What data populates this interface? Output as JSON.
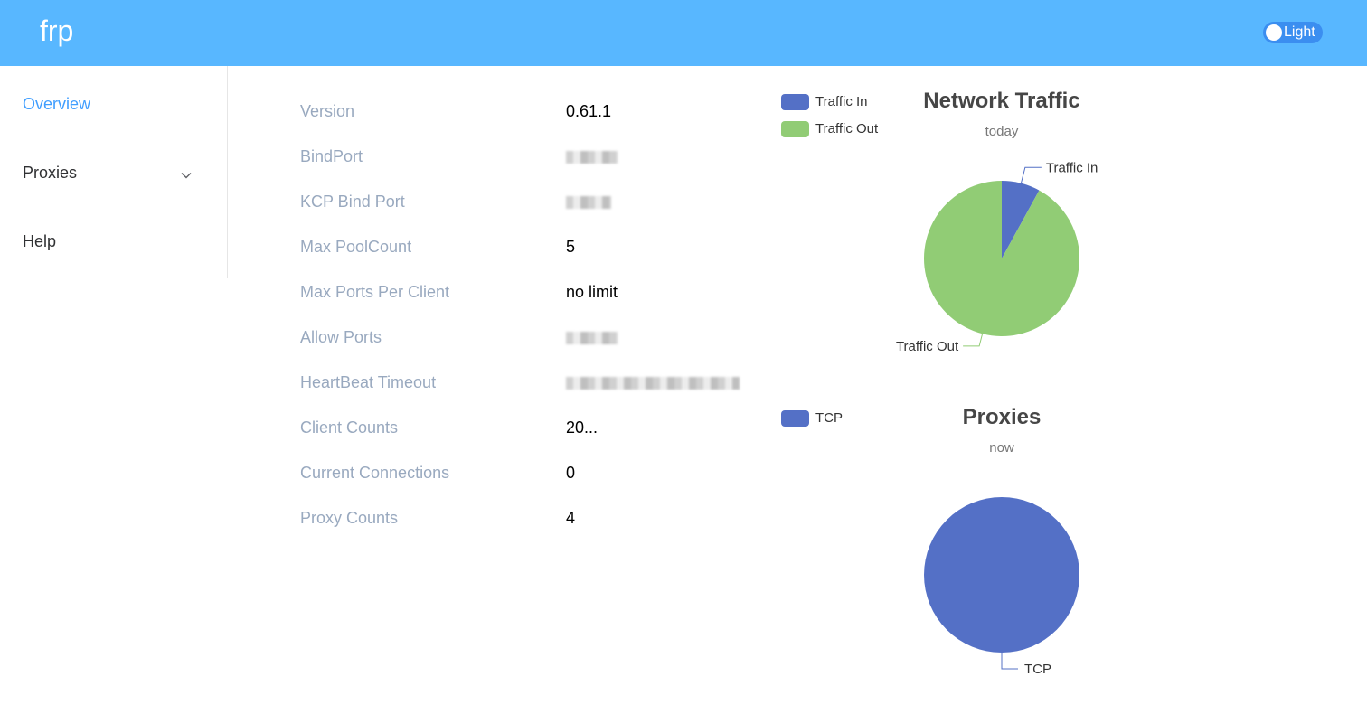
{
  "header": {
    "brand": "frp",
    "theme_toggle": {
      "label": "Light"
    }
  },
  "sidebar": {
    "items": [
      {
        "label": "Overview",
        "active": true
      },
      {
        "label": "Proxies",
        "has_submenu": true
      },
      {
        "label": "Help"
      }
    ]
  },
  "server_info": {
    "rows": [
      {
        "label": "Version",
        "value": "0.61.1"
      },
      {
        "label": "BindPort",
        "value": "",
        "redacted": true
      },
      {
        "label": "KCP Bind Port",
        "value": "",
        "redacted": true
      },
      {
        "label": "Max PoolCount",
        "value": "5"
      },
      {
        "label": "Max Ports Per Client",
        "value": "no limit"
      },
      {
        "label": "Allow Ports",
        "value": "",
        "redacted": true
      },
      {
        "label": "HeartBeat Timeout",
        "value": "",
        "redacted": true
      },
      {
        "label": "Client Counts",
        "value": "20..."
      },
      {
        "label": "Current Connections",
        "value": "0"
      },
      {
        "label": "Proxy Counts",
        "value": "4"
      }
    ]
  },
  "colors": {
    "header": "#58b7ff",
    "active_nav": "#409eff",
    "traffic_in": "#5470c6",
    "traffic_out": "#91cc75",
    "tcp": "#5470c6"
  },
  "chart_data": [
    {
      "type": "pie",
      "title": "Network Traffic",
      "subtitle": "today",
      "legend_position": "top-left",
      "series": [
        {
          "name": "Traffic In",
          "value": 8
        },
        {
          "name": "Traffic Out",
          "value": 92
        }
      ]
    },
    {
      "type": "pie",
      "title": "Proxies",
      "subtitle": "now",
      "legend_position": "top-left",
      "series": [
        {
          "name": "TCP",
          "value": 4
        }
      ]
    }
  ]
}
